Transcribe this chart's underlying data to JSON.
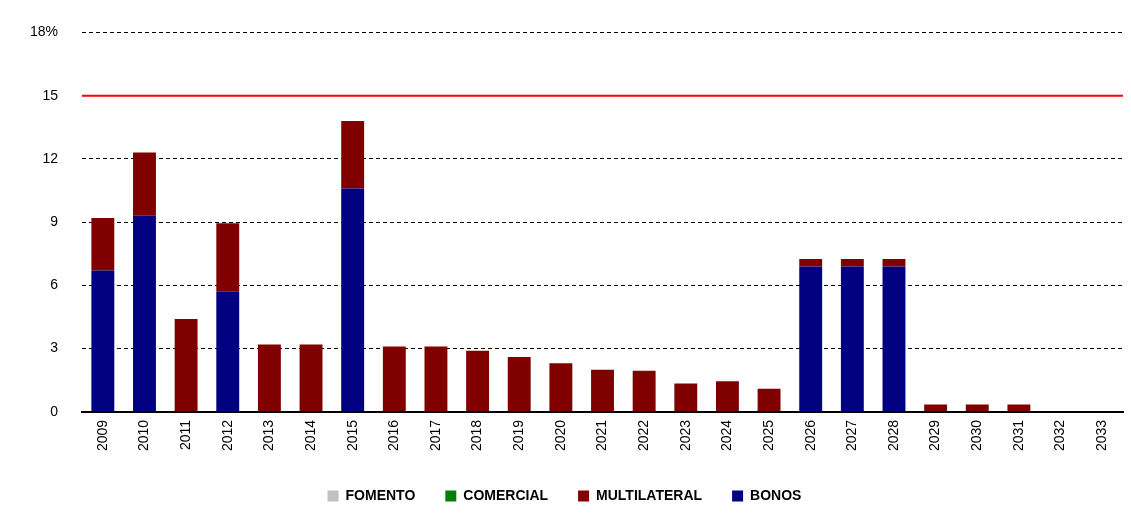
{
  "chart_data": {
    "type": "bar",
    "stacked": true,
    "categories": [
      "2009",
      "2010",
      "2011",
      "2012",
      "2013",
      "2014",
      "2015",
      "2016",
      "2017",
      "2018",
      "2019",
      "2020",
      "2021",
      "2022",
      "2023",
      "2024",
      "2025",
      "2026",
      "2027",
      "2028",
      "2029",
      "2030",
      "2031",
      "2032",
      "2033"
    ],
    "series": [
      {
        "name": "BONOS",
        "color": "#000080",
        "values": [
          6.7,
          9.3,
          0,
          5.7,
          0,
          0,
          10.6,
          0,
          0,
          0,
          0,
          0,
          0,
          0,
          0,
          0,
          0,
          6.9,
          6.9,
          6.9,
          0,
          0,
          0,
          0,
          0
        ]
      },
      {
        "name": "MULTILATERAL",
        "color": "#800000",
        "values": [
          2.5,
          3.0,
          4.4,
          3.25,
          3.2,
          3.2,
          3.2,
          3.1,
          3.1,
          2.9,
          2.6,
          2.3,
          2.0,
          1.95,
          1.35,
          1.45,
          1.1,
          0.35,
          0.35,
          0.35,
          0.35,
          0.35,
          0.35,
          0,
          0
        ]
      },
      {
        "name": "COMERCIAL",
        "color": "#008000",
        "values": [
          0,
          0,
          0,
          0,
          0,
          0,
          0,
          0,
          0,
          0,
          0,
          0,
          0,
          0,
          0,
          0,
          0,
          0,
          0,
          0,
          0,
          0,
          0,
          0,
          0
        ]
      },
      {
        "name": "FOMENTO",
        "color": "#c0c0c0",
        "values": [
          0,
          0,
          0,
          0,
          0,
          0,
          0,
          0,
          0,
          0,
          0,
          0,
          0,
          0,
          0,
          0,
          0,
          0,
          0,
          0,
          0,
          0,
          0,
          0,
          0
        ]
      }
    ],
    "ylim": [
      0,
      18
    ],
    "yticks": [
      0,
      3,
      6,
      9,
      12,
      15,
      {
        "value": 18,
        "label": "18%"
      }
    ],
    "grid": "y",
    "legend": "bottom",
    "ref_lines": [
      {
        "axis": "y",
        "value": 15,
        "color": "#ff0000"
      }
    ]
  }
}
